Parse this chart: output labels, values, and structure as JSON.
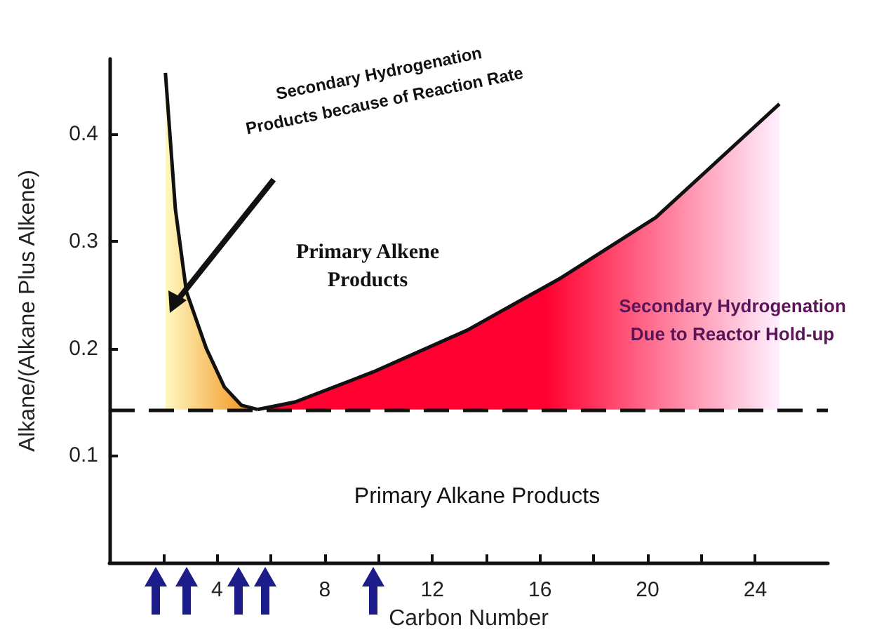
{
  "chart_data": {
    "type": "area",
    "xlabel": "Carbon Number",
    "ylabel": "Alkane/(Alkane Plus Alkene)",
    "xlim": [
      0,
      26.7
    ],
    "ylim": [
      0,
      0.47
    ],
    "xticks": [
      {
        "value": 2,
        "label": null
      },
      4,
      {
        "value": 6,
        "label": null
      },
      8,
      {
        "value": 10,
        "label": null
      },
      12,
      {
        "value": 14,
        "label": null
      },
      16,
      {
        "value": 18,
        "label": null
      },
      20,
      {
        "value": 22,
        "label": null
      },
      24
    ],
    "yticks": [
      0.1,
      0.2,
      0.3,
      0.4
    ],
    "grid": false,
    "marker": "none",
    "series": [
      {
        "color": "#f08a10",
        "x": [
          2.08,
          2.45,
          2.86,
          3.6,
          4.27,
          4.9,
          5.5
        ],
        "values": [
          0.457,
          0.33,
          0.253,
          0.2,
          0.164,
          0.147,
          0.143
        ]
      },
      {
        "color": "#ff0030",
        "x": [
          5.5,
          6.9,
          9.8,
          13.3,
          16.8,
          20.3,
          24.9
        ],
        "values": [
          0.143,
          0.15,
          0.178,
          0.217,
          0.266,
          0.322,
          0.428
        ]
      }
    ],
    "ref_lines": [
      {
        "axis": "y",
        "value": 0.143,
        "line_style": "dashed",
        "color": "#111111"
      }
    ],
    "annotations": [
      "Secondary Hydrogenation Products because of Reaction Rate",
      "Primary Alkene Products",
      "Secondary Hydrogenation Due to Reactor Hold-up",
      "Primary Alkane Products"
    ]
  }
}
